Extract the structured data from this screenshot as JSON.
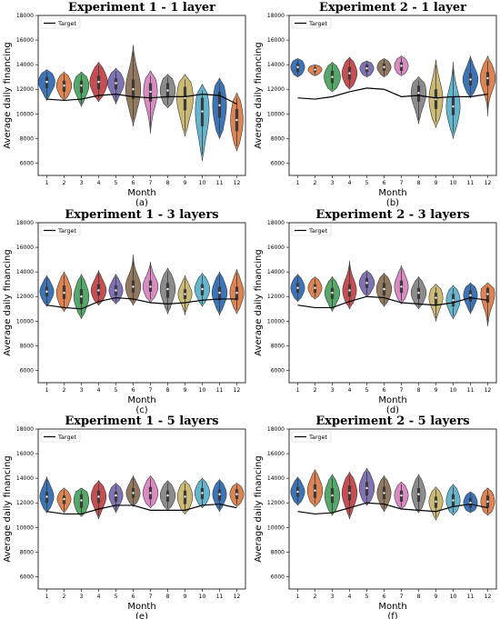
{
  "chart_data": [
    {
      "type": "violin",
      "title": "Experiment 1 - 1 layer",
      "caption": "(a)",
      "xlabel": "Month",
      "ylabel": "Average daily financing",
      "legend": "Target",
      "legend_position": "top-left",
      "ylim": [
        5000,
        18000
      ],
      "yticks": [
        6000,
        8000,
        10000,
        12000,
        14000,
        16000,
        18000
      ],
      "categories": [
        "1",
        "2",
        "3",
        "4",
        "5",
        "6",
        "7",
        "8",
        "9",
        "10",
        "11",
        "12"
      ],
      "target": [
        11200,
        11100,
        11200,
        11500,
        11600,
        11400,
        11300,
        11400,
        11400,
        11600,
        11500,
        10800
      ],
      "violins": [
        {
          "median": 12600,
          "q1": 12100,
          "q3": 13000,
          "min": 11100,
          "max": 13600,
          "width": 0.65
        },
        {
          "median": 12300,
          "q1": 11800,
          "q3": 12700,
          "min": 11100,
          "max": 13400,
          "width": 0.6
        },
        {
          "median": 12300,
          "q1": 11700,
          "q3": 12700,
          "min": 10600,
          "max": 13400,
          "width": 0.6
        },
        {
          "median": 12600,
          "q1": 12000,
          "q3": 13100,
          "min": 11000,
          "max": 14200,
          "width": 0.7
        },
        {
          "median": 12500,
          "q1": 12000,
          "q3": 12900,
          "min": 10800,
          "max": 13700,
          "width": 0.65
        },
        {
          "median": 12000,
          "q1": 11200,
          "q3": 12800,
          "min": 9000,
          "max": 15600,
          "width": 0.6
        },
        {
          "median": 11800,
          "q1": 11000,
          "q3": 12500,
          "min": 8400,
          "max": 13500,
          "width": 0.55
        },
        {
          "median": 11900,
          "q1": 11300,
          "q3": 12500,
          "min": 10500,
          "max": 13200,
          "width": 0.6
        },
        {
          "median": 11300,
          "q1": 10300,
          "q3": 12200,
          "min": 8200,
          "max": 13200,
          "width": 0.65
        },
        {
          "median": 10200,
          "q1": 9000,
          "q3": 11300,
          "min": 6200,
          "max": 12400,
          "width": 0.55
        },
        {
          "median": 10700,
          "q1": 9700,
          "q3": 11800,
          "min": 8000,
          "max": 12900,
          "width": 0.55
        },
        {
          "median": 9500,
          "q1": 8600,
          "q3": 10400,
          "min": 7000,
          "max": 11700,
          "width": 0.5
        }
      ]
    },
    {
      "type": "violin",
      "title": "Experiment 2 - 1 layer",
      "caption": "(b)",
      "xlabel": "Month",
      "ylabel": "Average daily financing",
      "legend": "Target",
      "legend_position": "top-left",
      "ylim": [
        5000,
        18000
      ],
      "yticks": [
        6000,
        8000,
        10000,
        12000,
        14000,
        16000,
        18000
      ],
      "categories": [
        "1",
        "2",
        "3",
        "4",
        "5",
        "6",
        "7",
        "8",
        "9",
        "10",
        "11",
        "12"
      ],
      "target": [
        11300,
        11200,
        11400,
        11800,
        12100,
        12000,
        11400,
        11500,
        11300,
        11400,
        11400,
        11600
      ],
      "violins": [
        {
          "median": 13800,
          "q1": 13400,
          "q3": 14100,
          "min": 13000,
          "max": 14500,
          "width": 0.55
        },
        {
          "median": 13600,
          "q1": 13400,
          "q3": 13800,
          "min": 13100,
          "max": 14000,
          "width": 0.55
        },
        {
          "median": 13000,
          "q1": 12500,
          "q3": 13500,
          "min": 11800,
          "max": 14200,
          "width": 0.65
        },
        {
          "median": 13300,
          "q1": 12800,
          "q3": 13800,
          "min": 12000,
          "max": 14600,
          "width": 0.6
        },
        {
          "median": 13700,
          "q1": 13400,
          "q3": 14000,
          "min": 13000,
          "max": 14300,
          "width": 0.55
        },
        {
          "median": 13800,
          "q1": 13500,
          "q3": 14100,
          "min": 13000,
          "max": 14500,
          "width": 0.55
        },
        {
          "median": 13900,
          "q1": 13500,
          "q3": 14200,
          "min": 13100,
          "max": 14700,
          "width": 0.55
        },
        {
          "median": 11700,
          "q1": 11000,
          "q3": 12300,
          "min": 9200,
          "max": 13000,
          "width": 0.6
        },
        {
          "median": 11200,
          "q1": 10400,
          "q3": 12000,
          "min": 8900,
          "max": 14400,
          "width": 0.55
        },
        {
          "median": 10600,
          "q1": 9900,
          "q3": 11400,
          "min": 8000,
          "max": 14200,
          "width": 0.55
        },
        {
          "median": 12800,
          "q1": 12300,
          "q3": 13300,
          "min": 11300,
          "max": 14700,
          "width": 0.6
        },
        {
          "median": 12900,
          "q1": 12300,
          "q3": 13400,
          "min": 9800,
          "max": 14700,
          "width": 0.6
        }
      ]
    },
    {
      "type": "violin",
      "title": "Experiment 1 - 3 layers",
      "caption": "(c)",
      "xlabel": "Month",
      "ylabel": "Average daily financing",
      "legend": "Target",
      "legend_position": "top-left",
      "ylim": [
        5000,
        18000
      ],
      "yticks": [
        6000,
        8000,
        10000,
        12000,
        14000,
        16000,
        18000
      ],
      "categories": [
        "1",
        "2",
        "3",
        "4",
        "5",
        "6",
        "7",
        "8",
        "9",
        "10",
        "11",
        "12"
      ],
      "target": [
        11300,
        11100,
        11000,
        11600,
        11900,
        11800,
        11500,
        11400,
        11500,
        11700,
        11800,
        11800
      ],
      "violins": [
        {
          "median": 12400,
          "q1": 12000,
          "q3": 12800,
          "min": 11200,
          "max": 13700,
          "width": 0.55
        },
        {
          "median": 12300,
          "q1": 11800,
          "q3": 12900,
          "min": 10800,
          "max": 14000,
          "width": 0.6
        },
        {
          "median": 12000,
          "q1": 11400,
          "q3": 12600,
          "min": 10200,
          "max": 13800,
          "width": 0.6
        },
        {
          "median": 12500,
          "q1": 12100,
          "q3": 13000,
          "min": 11300,
          "max": 14100,
          "width": 0.6
        },
        {
          "median": 12500,
          "q1": 12100,
          "q3": 12900,
          "min": 11400,
          "max": 13800,
          "width": 0.55
        },
        {
          "median": 12800,
          "q1": 12300,
          "q3": 13300,
          "min": 11300,
          "max": 15400,
          "width": 0.6
        },
        {
          "median": 12800,
          "q1": 12400,
          "q3": 13300,
          "min": 11500,
          "max": 14800,
          "width": 0.6
        },
        {
          "median": 12600,
          "q1": 11900,
          "q3": 13100,
          "min": 10600,
          "max": 14300,
          "width": 0.6
        },
        {
          "median": 12200,
          "q1": 11800,
          "q3": 12600,
          "min": 10500,
          "max": 13700,
          "width": 0.55
        },
        {
          "median": 12600,
          "q1": 12100,
          "q3": 13000,
          "min": 11200,
          "max": 13900,
          "width": 0.6
        },
        {
          "median": 12300,
          "q1": 11700,
          "q3": 12800,
          "min": 10500,
          "max": 14000,
          "width": 0.6
        },
        {
          "median": 12300,
          "q1": 11700,
          "q3": 12800,
          "min": 10600,
          "max": 14200,
          "width": 0.55
        }
      ]
    },
    {
      "type": "violin",
      "title": "Experiment 2 - 3 layers",
      "caption": "(d)",
      "xlabel": "Month",
      "ylabel": "Average daily financing",
      "legend": "Target",
      "legend_position": "top-left",
      "ylim": [
        5000,
        18000
      ],
      "yticks": [
        6000,
        8000,
        10000,
        12000,
        14000,
        16000,
        18000
      ],
      "categories": [
        "1",
        "2",
        "3",
        "4",
        "5",
        "6",
        "7",
        "8",
        "9",
        "10",
        "11",
        "12"
      ],
      "target": [
        11300,
        11100,
        11100,
        11600,
        12000,
        11900,
        11500,
        11400,
        11300,
        11500,
        11900,
        11700
      ],
      "violins": [
        {
          "median": 12700,
          "q1": 12300,
          "q3": 13100,
          "min": 11600,
          "max": 13800,
          "width": 0.55
        },
        {
          "median": 12700,
          "q1": 12300,
          "q3": 13000,
          "min": 11800,
          "max": 13600,
          "width": 0.55
        },
        {
          "median": 12300,
          "q1": 11800,
          "q3": 12700,
          "min": 10800,
          "max": 13600,
          "width": 0.6
        },
        {
          "median": 12500,
          "q1": 12000,
          "q3": 13000,
          "min": 11000,
          "max": 14900,
          "width": 0.55
        },
        {
          "median": 13100,
          "q1": 12700,
          "q3": 13500,
          "min": 12000,
          "max": 14100,
          "width": 0.6
        },
        {
          "median": 12600,
          "q1": 12100,
          "q3": 13100,
          "min": 11200,
          "max": 13900,
          "width": 0.6
        },
        {
          "median": 12800,
          "q1": 12300,
          "q3": 13300,
          "min": 11400,
          "max": 14500,
          "width": 0.55
        },
        {
          "median": 12300,
          "q1": 11800,
          "q3": 12700,
          "min": 11000,
          "max": 13600,
          "width": 0.6
        },
        {
          "median": 11900,
          "q1": 11300,
          "q3": 12300,
          "min": 10000,
          "max": 13000,
          "width": 0.55
        },
        {
          "median": 11700,
          "q1": 11200,
          "q3": 12200,
          "min": 10200,
          "max": 12900,
          "width": 0.55
        },
        {
          "median": 12100,
          "q1": 11600,
          "q3": 12500,
          "min": 10600,
          "max": 13100,
          "width": 0.55
        },
        {
          "median": 12200,
          "q1": 11500,
          "q3": 12700,
          "min": 9600,
          "max": 13100,
          "width": 0.55
        }
      ]
    },
    {
      "type": "violin",
      "title": "Experiment 1 - 5 layers",
      "caption": "(e)",
      "xlabel": "Month",
      "ylabel": "Average daily financing",
      "legend": "Target",
      "legend_position": "top-left",
      "ylim": [
        5000,
        18000
      ],
      "yticks": [
        6000,
        8000,
        10000,
        12000,
        14000,
        16000,
        18000
      ],
      "categories": [
        "1",
        "2",
        "3",
        "4",
        "5",
        "6",
        "7",
        "8",
        "9",
        "10",
        "11",
        "12"
      ],
      "target": [
        11300,
        11100,
        11100,
        11500,
        11800,
        11800,
        11400,
        11400,
        11400,
        11800,
        11900,
        11600
      ],
      "violins": [
        {
          "median": 12500,
          "q1": 12000,
          "q3": 12900,
          "min": 11200,
          "max": 14100,
          "width": 0.55
        },
        {
          "median": 12300,
          "q1": 11900,
          "q3": 12600,
          "min": 11200,
          "max": 13200,
          "width": 0.55
        },
        {
          "median": 12200,
          "q1": 11600,
          "q3": 12700,
          "min": 10900,
          "max": 13200,
          "width": 0.6
        },
        {
          "median": 12500,
          "q1": 12000,
          "q3": 13000,
          "min": 10700,
          "max": 13800,
          "width": 0.6
        },
        {
          "median": 12600,
          "q1": 12100,
          "q3": 12900,
          "min": 11200,
          "max": 13600,
          "width": 0.55
        },
        {
          "median": 12800,
          "q1": 12400,
          "q3": 13200,
          "min": 11700,
          "max": 14200,
          "width": 0.55
        },
        {
          "median": 12800,
          "q1": 12300,
          "q3": 13300,
          "min": 11600,
          "max": 14200,
          "width": 0.6
        },
        {
          "median": 12600,
          "q1": 12100,
          "q3": 13000,
          "min": 11400,
          "max": 13800,
          "width": 0.6
        },
        {
          "median": 12500,
          "q1": 11900,
          "q3": 13000,
          "min": 11100,
          "max": 13800,
          "width": 0.6
        },
        {
          "median": 12800,
          "q1": 12300,
          "q3": 13200,
          "min": 11600,
          "max": 14000,
          "width": 0.6
        },
        {
          "median": 12700,
          "q1": 12200,
          "q3": 13100,
          "min": 11300,
          "max": 13900,
          "width": 0.55
        },
        {
          "median": 12700,
          "q1": 12300,
          "q3": 13100,
          "min": 11700,
          "max": 13600,
          "width": 0.55
        }
      ]
    },
    {
      "type": "violin",
      "title": "Experiment 2 - 5 layers",
      "caption": "(f)",
      "xlabel": "Month",
      "ylabel": "Average daily financing",
      "legend": "Target",
      "legend_position": "top-left",
      "ylim": [
        5000,
        18000
      ],
      "yticks": [
        6000,
        8000,
        10000,
        12000,
        14000,
        16000,
        18000
      ],
      "categories": [
        "1",
        "2",
        "3",
        "4",
        "5",
        "6",
        "7",
        "8",
        "9",
        "10",
        "11",
        "12"
      ],
      "target": [
        11300,
        11100,
        11200,
        11600,
        12000,
        11900,
        11500,
        11400,
        11300,
        11700,
        11900,
        11600
      ],
      "violins": [
        {
          "median": 12900,
          "q1": 12500,
          "q3": 13300,
          "min": 11800,
          "max": 14100,
          "width": 0.55
        },
        {
          "median": 13000,
          "q1": 12400,
          "q3": 13500,
          "min": 11700,
          "max": 14700,
          "width": 0.6
        },
        {
          "median": 12600,
          "q1": 12000,
          "q3": 13200,
          "min": 11000,
          "max": 14300,
          "width": 0.6
        },
        {
          "median": 12800,
          "q1": 12200,
          "q3": 13400,
          "min": 10700,
          "max": 14500,
          "width": 0.6
        },
        {
          "median": 13200,
          "q1": 12600,
          "q3": 13700,
          "min": 11800,
          "max": 14800,
          "width": 0.6
        },
        {
          "median": 12800,
          "q1": 12300,
          "q3": 13300,
          "min": 11300,
          "max": 14200,
          "width": 0.55
        },
        {
          "median": 12600,
          "q1": 12100,
          "q3": 13000,
          "min": 11500,
          "max": 13700,
          "width": 0.55
        },
        {
          "median": 12700,
          "q1": 12100,
          "q3": 13200,
          "min": 11200,
          "max": 14300,
          "width": 0.55
        },
        {
          "median": 12100,
          "q1": 11600,
          "q3": 12500,
          "min": 10600,
          "max": 13300,
          "width": 0.55
        },
        {
          "median": 12200,
          "q1": 11700,
          "q3": 12700,
          "min": 11000,
          "max": 13500,
          "width": 0.55
        },
        {
          "median": 12000,
          "q1": 11600,
          "q3": 12400,
          "min": 11200,
          "max": 12900,
          "width": 0.55
        },
        {
          "median": 12100,
          "q1": 11600,
          "q3": 12600,
          "min": 11000,
          "max": 13200,
          "width": 0.55
        }
      ]
    }
  ],
  "palette": [
    "#3d74b7",
    "#dd8452",
    "#55a868",
    "#c44e52",
    "#8172b3",
    "#937860",
    "#da8bc3",
    "#8c8c8c",
    "#ccb974",
    "#64b5cd",
    "#3d74b7",
    "#dd8452"
  ]
}
